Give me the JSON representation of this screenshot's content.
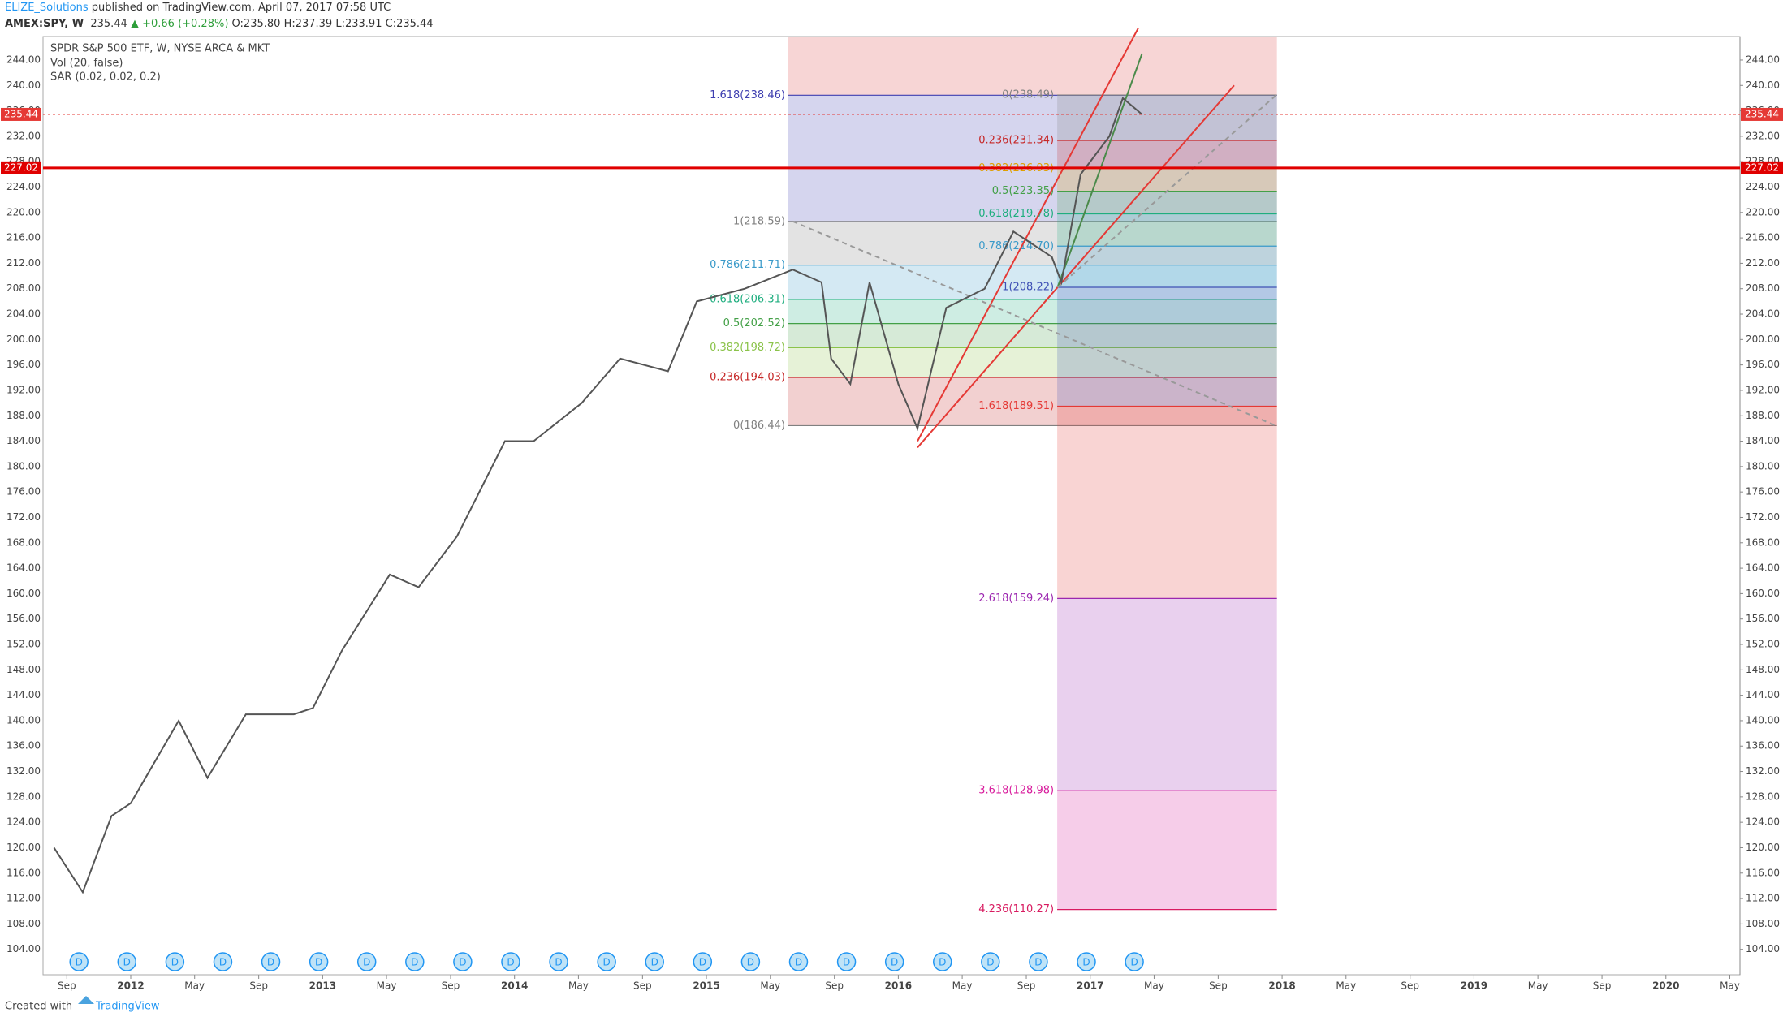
{
  "header": {
    "author": "ELIZE_Solutions",
    "published": " published on TradingView.com, April 07, 2017 07:58 UTC",
    "symbol": "AMEX:SPY, W",
    "last": "235.44",
    "change": "▲ +0.66 (+0.28%)",
    "ohlc": [
      "O:235.80",
      "H:237.39",
      "L:233.91",
      "C:235.44"
    ]
  },
  "footer": {
    "created": "Created with",
    "brand": "TradingView"
  },
  "chart_data": {
    "type": "line",
    "title": "SPDR S&P 500 ETF, W, NYSE ARCA & MKT",
    "indicators": [
      "Vol (20, false)",
      "SAR (0.02, 0.02, 0.2)"
    ],
    "color": "#555555",
    "x": [
      2011.6,
      2011.75,
      2011.9,
      2012.0,
      2012.25,
      2012.4,
      2012.6,
      2012.85,
      2012.95,
      2013.1,
      2013.35,
      2013.5,
      2013.7,
      2013.95,
      2014.1,
      2014.35,
      2014.55,
      2014.8,
      2014.95,
      2015.2,
      2015.45,
      2015.6,
      2015.65,
      2015.75,
      2015.85,
      2016.0,
      2016.1,
      2016.25,
      2016.45,
      2016.6,
      2016.8,
      2016.85,
      2016.95,
      2017.1,
      2017.17,
      2017.27
    ],
    "values": [
      120,
      113,
      125,
      127,
      140,
      131,
      141,
      141,
      142,
      151,
      163,
      161,
      169,
      184,
      184,
      190,
      197,
      195,
      206,
      208,
      211,
      209,
      197,
      193,
      209,
      193,
      186,
      205,
      208,
      217,
      213,
      209,
      226,
      232,
      238,
      235.44
    ],
    "xlim": [
      2011.543,
      2020.386
    ],
    "ylim": [
      100,
      247.7
    ],
    "xticks": [
      {
        "value": 2011.667,
        "label": "Sep"
      },
      {
        "value": 2012,
        "label": "2012"
      },
      {
        "value": 2012.333,
        "label": "May"
      },
      {
        "value": 2012.667,
        "label": "Sep"
      },
      {
        "value": 2013,
        "label": "2013"
      },
      {
        "value": 2013.333,
        "label": "May"
      },
      {
        "value": 2013.667,
        "label": "Sep"
      },
      {
        "value": 2014,
        "label": "2014"
      },
      {
        "value": 2014.333,
        "label": "May"
      },
      {
        "value": 2014.667,
        "label": "Sep"
      },
      {
        "value": 2015,
        "label": "2015"
      },
      {
        "value": 2015.333,
        "label": "May"
      },
      {
        "value": 2015.667,
        "label": "Sep"
      },
      {
        "value": 2016,
        "label": "2016"
      },
      {
        "value": 2016.333,
        "label": "May"
      },
      {
        "value": 2016.667,
        "label": "Sep"
      },
      {
        "value": 2017,
        "label": "2017"
      },
      {
        "value": 2017.333,
        "label": "May"
      },
      {
        "value": 2017.667,
        "label": "Sep"
      },
      {
        "value": 2018,
        "label": "2018"
      },
      {
        "value": 2018.333,
        "label": "May"
      },
      {
        "value": 2018.667,
        "label": "Sep"
      },
      {
        "value": 2019,
        "label": "2019"
      },
      {
        "value": 2019.333,
        "label": "May"
      },
      {
        "value": 2019.667,
        "label": "Sep"
      },
      {
        "value": 2020,
        "label": "2020"
      },
      {
        "value": 2020.333,
        "label": "May"
      }
    ],
    "yticks": [
      {
        "value": 104,
        "label": "104.00"
      },
      {
        "value": 108,
        "label": "108.00"
      },
      {
        "value": 112,
        "label": "112.00"
      },
      {
        "value": 116,
        "label": "116.00"
      },
      {
        "value": 120,
        "label": "120.00"
      },
      {
        "value": 124,
        "label": "124.00"
      },
      {
        "value": 128,
        "label": "128.00"
      },
      {
        "value": 132,
        "label": "132.00"
      },
      {
        "value": 136,
        "label": "136.00"
      },
      {
        "value": 140,
        "label": "140.00"
      },
      {
        "value": 144,
        "label": "144.00"
      },
      {
        "value": 148,
        "label": "148.00"
      },
      {
        "value": 152,
        "label": "152.00"
      },
      {
        "value": 156,
        "label": "156.00"
      },
      {
        "value": 160,
        "label": "160.00"
      },
      {
        "value": 164,
        "label": "164.00"
      },
      {
        "value": 168,
        "label": "168.00"
      },
      {
        "value": 172,
        "label": "172.00"
      },
      {
        "value": 176,
        "label": "176.00"
      },
      {
        "value": 180,
        "label": "180.00"
      },
      {
        "value": 184,
        "label": "184.00"
      },
      {
        "value": 188,
        "label": "188.00"
      },
      {
        "value": 192,
        "label": "192.00"
      },
      {
        "value": 196,
        "label": "196.00"
      },
      {
        "value": 200,
        "label": "200.00"
      },
      {
        "value": 204,
        "label": "204.00"
      },
      {
        "value": 208,
        "label": "208.00"
      },
      {
        "value": 212,
        "label": "212.00"
      },
      {
        "value": 216,
        "label": "216.00"
      },
      {
        "value": 220,
        "label": "220.00"
      },
      {
        "value": 224,
        "label": "224.00"
      },
      {
        "value": 228,
        "label": "228.00"
      },
      {
        "value": 232,
        "label": "232.00"
      },
      {
        "value": 236,
        "label": "236.00"
      },
      {
        "value": 240,
        "label": "240.00"
      },
      {
        "value": 244,
        "label": "244.00"
      }
    ],
    "price_lines": [
      {
        "value": 235.44,
        "color": "#e53935",
        "style": "dashed"
      },
      {
        "value": 227.02,
        "color": "#e00000",
        "style": "solid"
      }
    ],
    "fib_sets": [
      {
        "x0": 2015.427,
        "x1": 2017.973,
        "levels": [
          {
            "label": "1.618(238.46)",
            "value": 238.46,
            "color": "#3f3fb0"
          },
          {
            "label": "1(218.59)",
            "value": 218.59,
            "color": "#808080"
          },
          {
            "label": "0.786(211.71)",
            "value": 211.71,
            "color": "#3a9ac9"
          },
          {
            "label": "0.618(206.31)",
            "value": 206.31,
            "color": "#1fae7f"
          },
          {
            "label": "0.5(202.52)",
            "value": 202.52,
            "color": "#43a047"
          },
          {
            "label": "0.382(198.72)",
            "value": 198.72,
            "color": "#8bc34a"
          },
          {
            "label": "0.236(194.03)",
            "value": 194.03,
            "color": "#c62828"
          },
          {
            "label": "0(186.44)",
            "value": 186.44,
            "color": "#808080"
          }
        ]
      },
      {
        "x0": 2016.828,
        "x1": 2017.973,
        "levels": [
          {
            "label": "0(238.49)",
            "value": 238.49,
            "color": "#808080"
          },
          {
            "label": "0.236(231.34)",
            "value": 231.34,
            "color": "#c62828"
          },
          {
            "label": "0.382(226.93)",
            "value": 226.93,
            "color": "#e0a000"
          },
          {
            "label": "0.5(223.35)",
            "value": 223.35,
            "color": "#43a047"
          },
          {
            "label": "0.618(219.78)",
            "value": 219.78,
            "color": "#1fae7f"
          },
          {
            "label": "0.786(214.70)",
            "value": 214.7,
            "color": "#3a9ac9"
          },
          {
            "label": "1(208.22)",
            "value": 208.22,
            "color": "#3f51b5"
          },
          {
            "label": "1.618(189.51)",
            "value": 189.51,
            "color": "#e53935"
          },
          {
            "label": "2.618(159.24)",
            "value": 159.24,
            "color": "#9c27b0"
          },
          {
            "label": "3.618(128.98)",
            "value": 128.98,
            "color": "#d81b9c"
          },
          {
            "label": "4.236(110.27)",
            "value": 110.27,
            "color": "#d81b60"
          }
        ]
      }
    ],
    "trendlines": [
      {
        "x": [
          2016.1,
          2017.25
        ],
        "y": [
          184,
          249
        ],
        "color": "#e53935",
        "style": "solid"
      },
      {
        "x": [
          2016.1,
          2017.75
        ],
        "y": [
          183,
          240
        ],
        "color": "#e53935",
        "style": "solid"
      },
      {
        "x": [
          2016.83,
          2017.27
        ],
        "y": [
          208.22,
          245
        ],
        "color": "#4a8a4a",
        "style": "solid"
      },
      {
        "x": [
          2015.45,
          2017.97
        ],
        "y": [
          218.6,
          186.4
        ],
        "color": "#999999",
        "style": "dashed"
      },
      {
        "x": [
          2016.83,
          2017.97
        ],
        "y": [
          208.2,
          238.5
        ],
        "color": "#999999",
        "style": "dashed"
      }
    ],
    "dividends": {
      "label": "D",
      "x": [
        2011.73,
        2011.98,
        2012.23,
        2012.48,
        2012.73,
        2012.98,
        2013.23,
        2013.48,
        2013.73,
        2013.98,
        2014.23,
        2014.48,
        2014.73,
        2014.98,
        2015.23,
        2015.48,
        2015.73,
        2015.98,
        2016.23,
        2016.48,
        2016.73,
        2016.98,
        2017.23
      ]
    }
  }
}
